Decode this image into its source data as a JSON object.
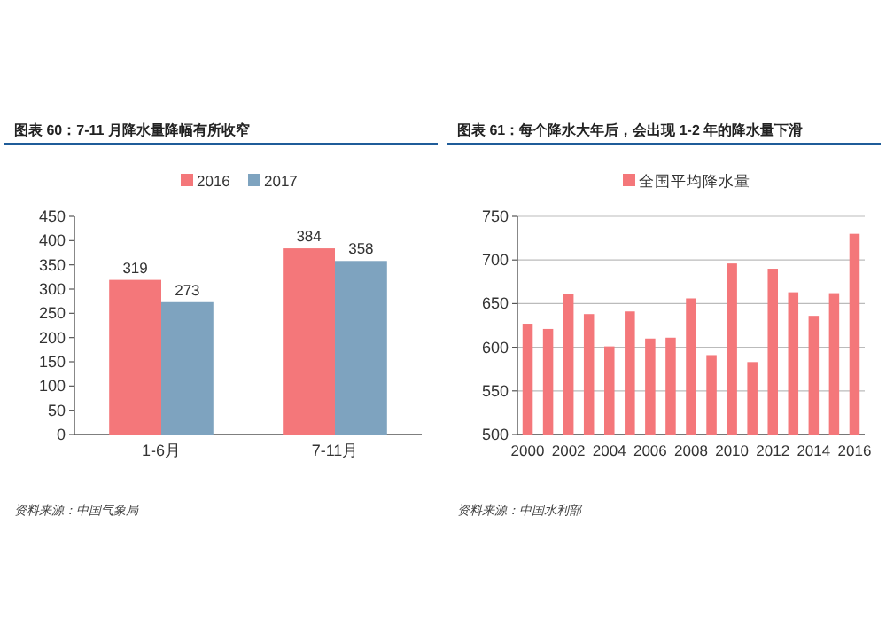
{
  "chart_data": [
    {
      "type": "bar",
      "title": "图表 60：7-11 月降水量降幅有所收窄",
      "categories": [
        "1-6月",
        "7-11月"
      ],
      "series": [
        {
          "name": "2016",
          "color": "#f4777a",
          "values": [
            319,
            384
          ]
        },
        {
          "name": "2017",
          "color": "#7ea3bf",
          "values": [
            273,
            358
          ]
        }
      ],
      "ylim": [
        0,
        450
      ],
      "yticks": [
        0,
        50,
        100,
        150,
        200,
        250,
        300,
        350,
        400,
        450
      ],
      "data_labels": true,
      "legend": "top",
      "grid": false,
      "annotations": [
        "资料来源：中国气象局"
      ]
    },
    {
      "type": "bar",
      "title": "图表 61：每个降水大年后，会出现 1-2 年的降水量下滑",
      "categories": [
        "2000",
        null,
        "2002",
        null,
        "2004",
        null,
        "2006",
        null,
        "2008",
        null,
        "2010",
        null,
        "2012",
        null,
        "2014",
        null,
        "2016"
      ],
      "series": [
        {
          "name": "全国平均降水量",
          "color": "#f4777a",
          "values": [
            627,
            621,
            661,
            638,
            601,
            641,
            610,
            611,
            656,
            591,
            696,
            583,
            690,
            663,
            636,
            662,
            730
          ]
        }
      ],
      "ylim": [
        500,
        750
      ],
      "yticks": [
        500,
        550,
        600,
        650,
        700,
        750
      ],
      "legend": "top",
      "grid": "y",
      "annotations": [
        "资料来源：中国水利部"
      ]
    }
  ]
}
